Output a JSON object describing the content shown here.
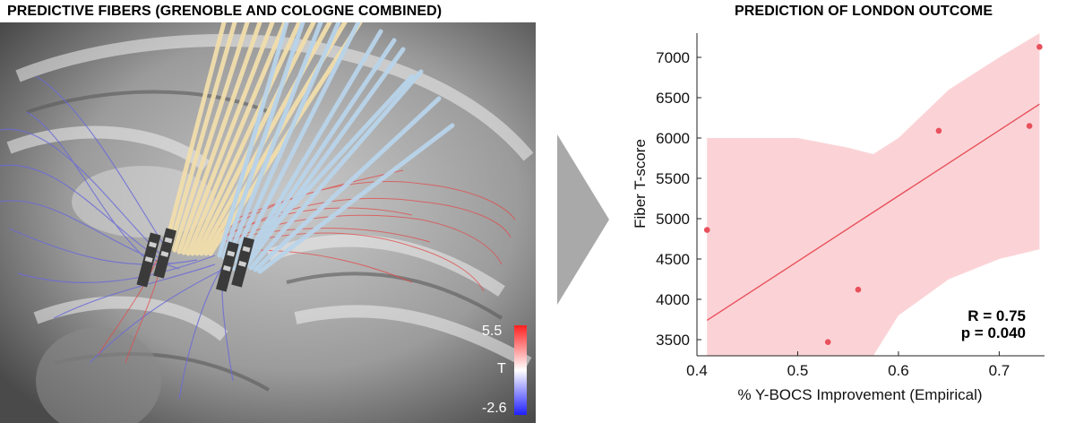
{
  "left_panel": {
    "title": "PREDICTIVE FIBERS (GRENOBLE AND COLOGNE COMBINED)",
    "colorbar": {
      "max_label": "5.5",
      "mid_label": "T",
      "min_label": "-2.6",
      "max_color": "#ff2a2a",
      "min_color": "#2a2aff"
    }
  },
  "right_panel": {
    "title": "PREDICTION OF LONDON OUTCOME"
  },
  "chart_data": {
    "type": "scatter",
    "title": "PREDICTION OF LONDON OUTCOME",
    "xlabel": "% Y-BOCS Improvement (Empirical)",
    "ylabel": "Fiber T-score",
    "xlim": [
      0.4,
      0.745
    ],
    "ylim": [
      3300,
      7300
    ],
    "xticks": [
      "0.4",
      "0.5",
      "0.6",
      "0.7"
    ],
    "yticks": [
      "3500",
      "4000",
      "4500",
      "5000",
      "5500",
      "6000",
      "6500",
      "7000"
    ],
    "points": [
      {
        "x": 0.41,
        "y": 4860
      },
      {
        "x": 0.53,
        "y": 3470
      },
      {
        "x": 0.56,
        "y": 4120
      },
      {
        "x": 0.64,
        "y": 6090
      },
      {
        "x": 0.73,
        "y": 6150
      },
      {
        "x": 0.74,
        "y": 7130
      }
    ],
    "fit_line": {
      "x": [
        0.41,
        0.74
      ],
      "y": [
        3740,
        6420
      ]
    },
    "ci_band": {
      "x": [
        0.41,
        0.45,
        0.5,
        0.55,
        0.575,
        0.6,
        0.65,
        0.7,
        0.74
      ],
      "upper": [
        6000,
        6000,
        6000,
        5880,
        5800,
        6000,
        6600,
        7000,
        7300
      ],
      "lower": [
        3300,
        3300,
        3300,
        3300,
        3300,
        3800,
        4250,
        4500,
        4620
      ]
    },
    "annotations": [
      "R = 0.75",
      "p = 0.040"
    ],
    "marker_color": "#e8505b",
    "band_color": "#fbd3d6"
  }
}
